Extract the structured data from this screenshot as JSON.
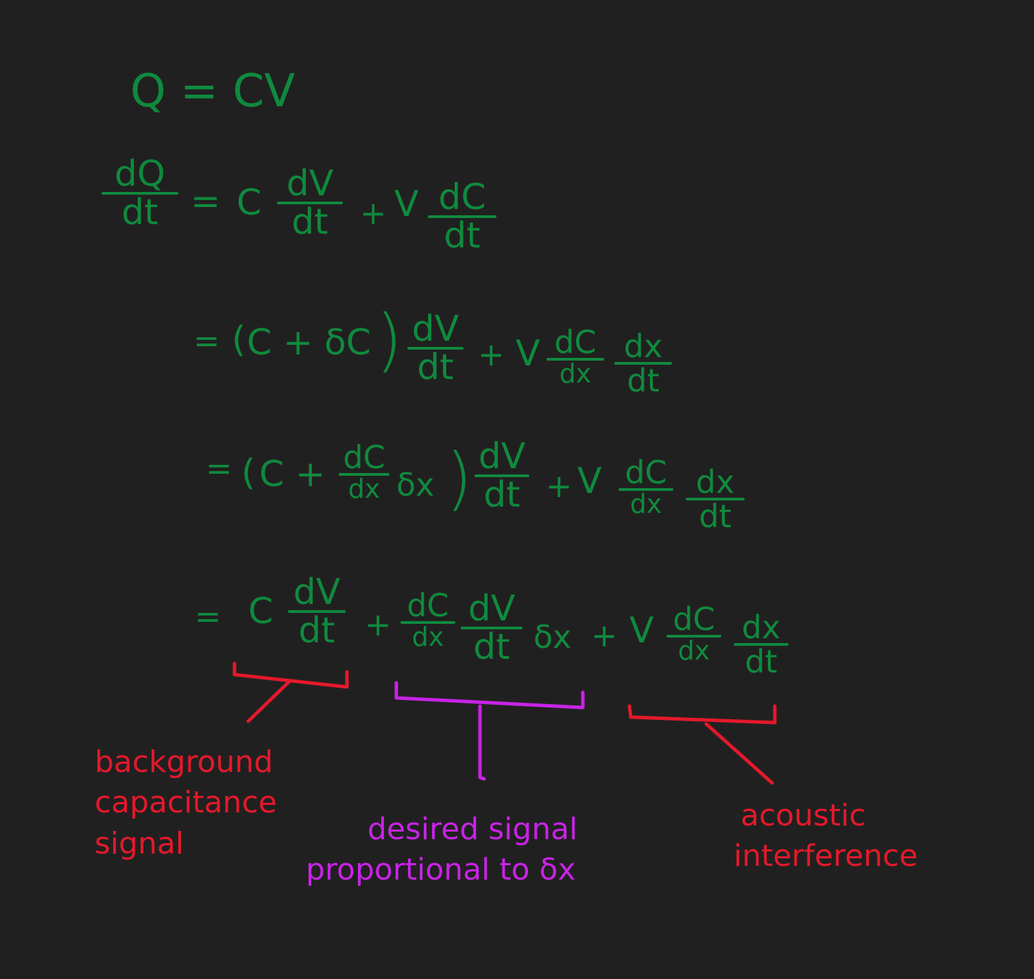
{
  "line1": {
    "text": "Q = CV"
  },
  "line2": {
    "lhs_num": "dQ",
    "lhs_den": "dt",
    "eq": "=",
    "c": "C",
    "f1_num": "dV",
    "f1_den": "dt",
    "plus": "+",
    "v": "V",
    "f2_num": "dC",
    "f2_den": "dt"
  },
  "line3": {
    "eq": "=",
    "open": "(",
    "inner": "C + δC",
    "close": ")",
    "f1_num": "dV",
    "f1_den": "dt",
    "plus": "+",
    "v": "V",
    "f2_num": "dC",
    "f2_den": "dx",
    "f3_num": "dx",
    "f3_den": "dt"
  },
  "line4": {
    "eq": "=",
    "open": "(",
    "c_plus": "C +",
    "f0_num": "dC",
    "f0_den": "dx",
    "dx_sym": "δx",
    "close": ")",
    "f1_num": "dV",
    "f1_den": "dt",
    "plus": "+",
    "v": "V",
    "f2_num": "dC",
    "f2_den": "dx",
    "f3_num": "dx",
    "f3_den": "dt"
  },
  "line5": {
    "eq": "=",
    "c": "C",
    "f1_num": "dV",
    "f1_den": "dt",
    "plus1": "+",
    "f2_num": "dC",
    "f2_den": "dx",
    "f3_num": "dV",
    "f3_den": "dt",
    "dx_sym": "δx",
    "plus2": "+",
    "v": "V",
    "f4_num": "dC",
    "f4_den": "dx",
    "f5_num": "dx",
    "f5_den": "dt"
  },
  "annotations": {
    "background": [
      "background",
      "capacitance",
      "signal"
    ],
    "desired": [
      "desired signal",
      "proportional to δx"
    ],
    "acoustic": [
      "acoustic",
      "interference"
    ]
  },
  "colors": {
    "background": "#212020",
    "green": "#0f8a3e",
    "red": "#e3192b",
    "magenta": "#c823e6"
  }
}
